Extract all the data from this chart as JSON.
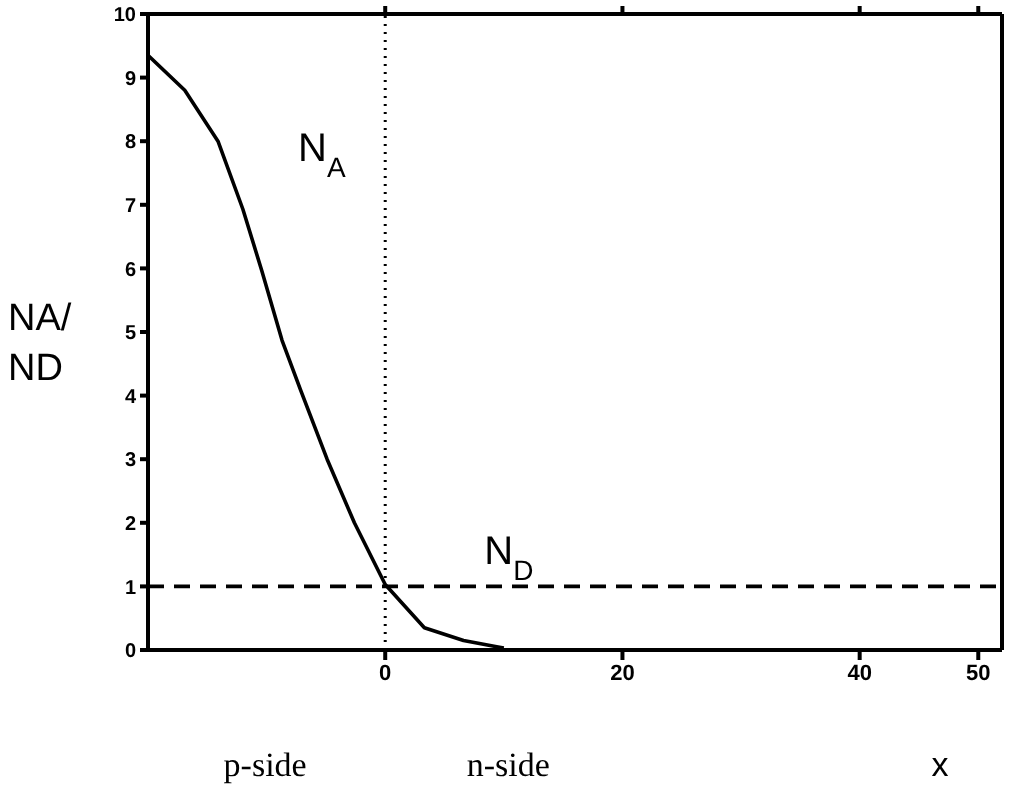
{
  "chart_data": {
    "type": "line",
    "xlabel": "x",
    "ylabel": "NA/ND",
    "xlim": [
      -20,
      52
    ],
    "xticks": [
      0,
      20,
      40,
      50
    ],
    "ylim": [
      0,
      10
    ],
    "yticks": [
      0,
      1,
      2,
      3,
      4,
      5,
      6,
      7,
      8,
      9,
      10
    ],
    "marker": "none",
    "series": [
      {
        "name": "N$_{A}$",
        "color": "#000000",
        "line_style": "solid",
        "x": [
          -20,
          -16.9,
          -14.1,
          -12,
          -10.4,
          -8.7,
          -7.1,
          -4.9,
          -2.6,
          0,
          3.3,
          6.6,
          9.4,
          10
        ],
        "values": [
          9.35,
          8.8,
          8,
          6.93,
          5.96,
          4.87,
          4.07,
          3,
          2,
          1.03,
          0.35,
          0.15,
          0.05,
          0.03
        ]
      },
      {
        "name": "N$_{D}$",
        "color": "#000000",
        "line_style": "dashed",
        "x": [
          -20,
          52
        ],
        "values": [
          1,
          1
        ]
      }
    ],
    "ref_lines": [
      {
        "axis": "x",
        "value": 0,
        "line_style": "dotted",
        "color": "#000000"
      }
    ],
    "annotations": [
      "p-side",
      "n-side"
    ]
  }
}
